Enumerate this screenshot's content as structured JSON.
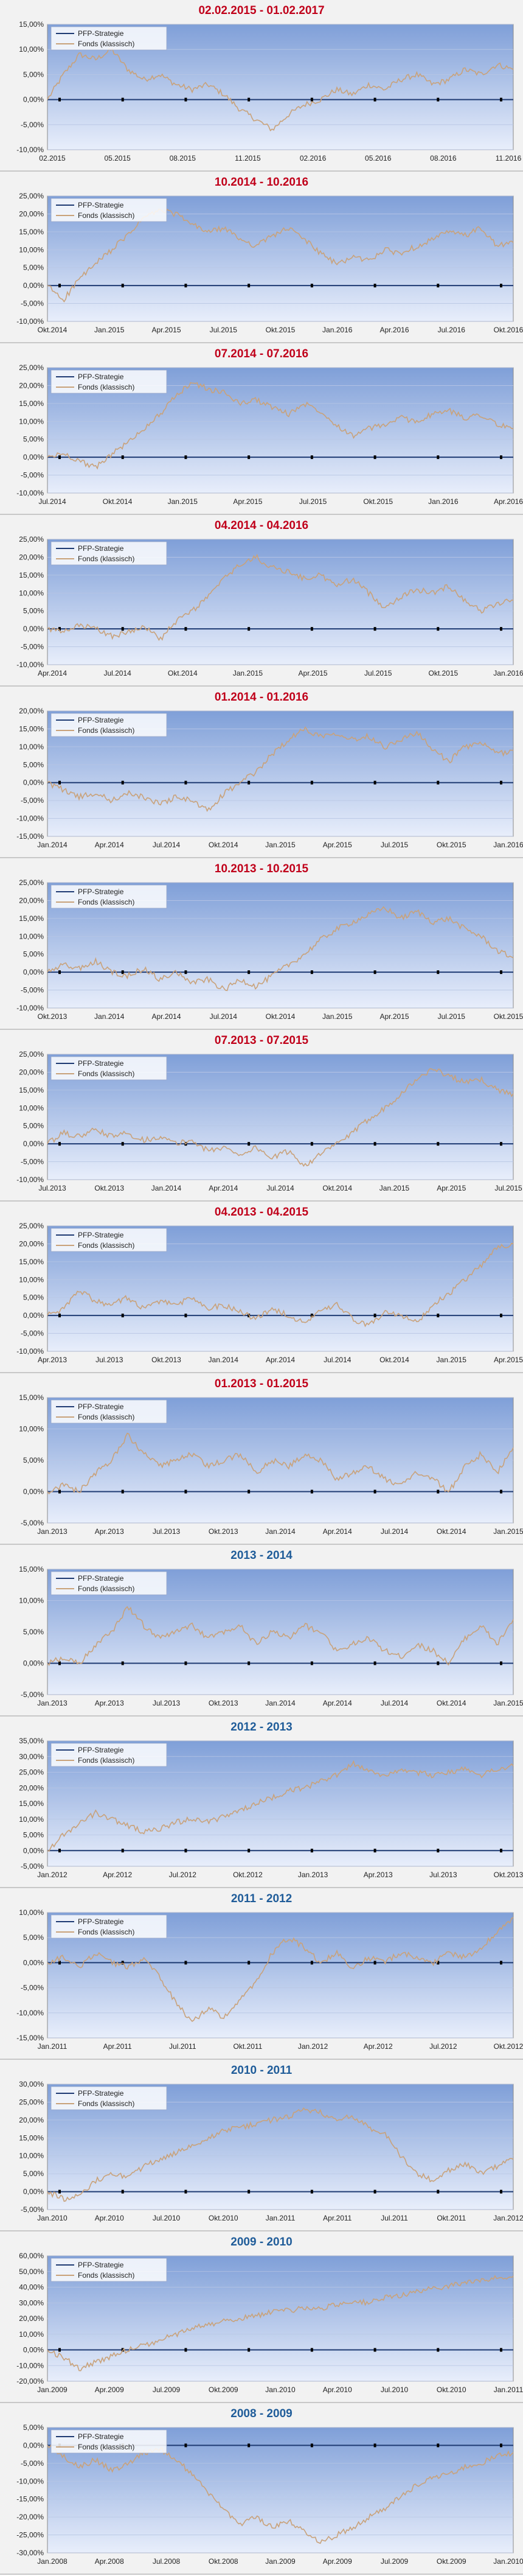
{
  "colors": {
    "plot_top": "#7f9fd8",
    "plot_bottom": "#e8eefb",
    "fonds_line": "#c9a27a",
    "pfp_line": "#1f3b73",
    "title_red": "#c0001a",
    "title_blue": "#1f5c99"
  },
  "chart_data": [
    {
      "type": "line",
      "title": "02.02.2015 - 01.02.2017",
      "title_color": "red",
      "legend": [
        "PFP-Strategie",
        "Fonds (klassisch)"
      ],
      "legend_position": "top-left",
      "grid": true,
      "yticks": [
        15,
        10,
        5,
        0,
        -5,
        -10
      ],
      "ylim": [
        -10,
        15
      ],
      "xticks": [
        "02.2015",
        "05.2015",
        "08.2015",
        "11.2015",
        "02.2016",
        "05.2016",
        "08.2016",
        "11.2016"
      ],
      "series": [
        {
          "name": "PFP-Strategie",
          "values": [
            0,
            0
          ]
        },
        {
          "name": "Fonds (klassisch)",
          "values": [
            0,
            5,
            9,
            8,
            10,
            6,
            4,
            5,
            3,
            2,
            3,
            1,
            -2,
            -4,
            -6,
            -3,
            -1,
            0,
            2,
            1,
            3,
            2,
            4,
            5,
            3,
            4,
            6,
            5,
            7,
            6
          ]
        }
      ]
    },
    {
      "type": "line",
      "title": "10.2014 - 10.2016",
      "title_color": "red",
      "legend": [
        "PFP-Strategie",
        "Fonds (klassisch)"
      ],
      "legend_position": "top-left",
      "grid": true,
      "yticks": [
        25,
        20,
        15,
        10,
        5,
        0,
        -5,
        -10
      ],
      "ylim": [
        -10,
        25
      ],
      "xticks": [
        "Okt.2014",
        "Jan.2015",
        "Apr.2015",
        "Jul.2015",
        "Okt.2015",
        "Jan.2016",
        "Apr.2016",
        "Jul.2016",
        "Okt.2016"
      ],
      "series": [
        {
          "name": "PFP-Strategie",
          "values": [
            0,
            0
          ]
        },
        {
          "name": "Fonds (klassisch)",
          "values": [
            0,
            -4,
            2,
            6,
            10,
            14,
            19,
            21,
            20,
            17,
            15,
            16,
            13,
            11,
            14,
            16,
            13,
            9,
            6,
            8,
            7,
            10,
            9,
            11,
            13,
            15,
            14,
            16,
            11,
            12
          ]
        }
      ]
    },
    {
      "type": "line",
      "title": "07.2014 - 07.2016",
      "title_color": "red",
      "legend": [
        "PFP-Strategie",
        "Fonds (klassisch)"
      ],
      "legend_position": "top-left",
      "grid": true,
      "yticks": [
        25,
        20,
        15,
        10,
        5,
        0,
        -5,
        -10
      ],
      "ylim": [
        -10,
        25
      ],
      "xticks": [
        "Jul.2014",
        "Okt.2014",
        "Jan.2015",
        "Apr.2015",
        "Jul.2015",
        "Okt.2015",
        "Jan.2016",
        "Apr.2016"
      ],
      "series": [
        {
          "name": "PFP-Strategie",
          "values": [
            0,
            0
          ]
        },
        {
          "name": "Fonds (klassisch)",
          "values": [
            0,
            1,
            -1,
            -3,
            1,
            4,
            8,
            12,
            17,
            21,
            19,
            18,
            15,
            16,
            14,
            12,
            15,
            13,
            9,
            6,
            8,
            9,
            11,
            10,
            12,
            13,
            11,
            12,
            9,
            8
          ]
        }
      ]
    },
    {
      "type": "line",
      "title": "04.2014 - 04.2016",
      "title_color": "red",
      "legend": [
        "PFP-Strategie",
        "Fonds (klassisch)"
      ],
      "legend_position": "top-left",
      "grid": true,
      "yticks": [
        25,
        20,
        15,
        10,
        5,
        0,
        -5,
        -10
      ],
      "ylim": [
        -10,
        25
      ],
      "xticks": [
        "Apr.2014",
        "Jul.2014",
        "Okt.2014",
        "Jan.2015",
        "Apr.2015",
        "Jul.2015",
        "Okt.2015",
        "Jan.2016"
      ],
      "series": [
        {
          "name": "PFP-Strategie",
          "values": [
            0,
            0
          ]
        },
        {
          "name": "Fonds (klassisch)",
          "values": [
            0,
            -1,
            1,
            0,
            -2,
            -1,
            1,
            -3,
            2,
            5,
            9,
            14,
            18,
            20,
            17,
            16,
            14,
            15,
            12,
            14,
            10,
            6,
            9,
            11,
            10,
            12,
            8,
            5,
            7,
            8
          ]
        }
      ]
    },
    {
      "type": "line",
      "title": "01.2014 - 01.2016",
      "title_color": "red",
      "legend": [
        "PFP-Strategie",
        "Fonds (klassisch)"
      ],
      "legend_position": "top-left",
      "grid": true,
      "yticks": [
        20,
        15,
        10,
        5,
        0,
        -5,
        -10,
        -15
      ],
      "ylim": [
        -15,
        20
      ],
      "xticks": [
        "Jan.2014",
        "Apr.2014",
        "Jul.2014",
        "Okt.2014",
        "Jan.2015",
        "Apr.2015",
        "Jul.2015",
        "Okt.2015",
        "Jan.2016"
      ],
      "series": [
        {
          "name": "PFP-Strategie",
          "values": [
            0,
            0
          ]
        },
        {
          "name": "Fonds (klassisch)",
          "values": [
            0,
            -2,
            -4,
            -3,
            -5,
            -3,
            -4,
            -6,
            -4,
            -5,
            -8,
            -3,
            0,
            3,
            8,
            12,
            15,
            13,
            14,
            12,
            13,
            10,
            12,
            14,
            9,
            6,
            10,
            11,
            8,
            9
          ]
        }
      ]
    },
    {
      "type": "line",
      "title": "10.2013 - 10.2015",
      "title_color": "red",
      "legend": [
        "PFP-Strategie",
        "Fonds (klassisch)"
      ],
      "legend_position": "top-left",
      "grid": true,
      "yticks": [
        25,
        20,
        15,
        10,
        5,
        0,
        -5,
        -10
      ],
      "ylim": [
        -10,
        25
      ],
      "xticks": [
        "Okt.2013",
        "Jan.2014",
        "Apr.2014",
        "Jul.2014",
        "Okt.2014",
        "Jan.2015",
        "Apr.2015",
        "Jul.2015",
        "Okt.2015"
      ],
      "series": [
        {
          "name": "PFP-Strategie",
          "values": [
            0,
            0
          ]
        },
        {
          "name": "Fonds (klassisch)",
          "values": [
            0,
            2,
            1,
            3,
            0,
            -1,
            1,
            -2,
            0,
            -3,
            -2,
            -5,
            -2,
            -4,
            -1,
            2,
            5,
            9,
            12,
            14,
            16,
            18,
            15,
            17,
            14,
            15,
            12,
            10,
            6,
            4
          ]
        }
      ]
    },
    {
      "type": "line",
      "title": "07.2013 - 07.2015",
      "title_color": "red",
      "legend": [
        "PFP-Strategie",
        "Fonds (klassisch)"
      ],
      "legend_position": "top-left",
      "grid": true,
      "yticks": [
        25,
        20,
        15,
        10,
        5,
        0,
        -5,
        -10
      ],
      "ylim": [
        -10,
        25
      ],
      "xticks": [
        "Jul.2013",
        "Okt.2013",
        "Jan.2014",
        "Apr.2014",
        "Jul.2014",
        "Okt.2014",
        "Jan.2015",
        "Apr.2015",
        "Jul.2015"
      ],
      "series": [
        {
          "name": "PFP-Strategie",
          "values": [
            0,
            0
          ]
        },
        {
          "name": "Fonds (klassisch)",
          "values": [
            0,
            3,
            2,
            4,
            2,
            3,
            1,
            2,
            0,
            1,
            -2,
            -1,
            -3,
            -1,
            -4,
            -2,
            -6,
            -3,
            0,
            3,
            7,
            10,
            14,
            18,
            21,
            19,
            17,
            18,
            15,
            14
          ]
        }
      ]
    },
    {
      "type": "line",
      "title": "04.2013 - 04.2015",
      "title_color": "red",
      "legend": [
        "PFP-Strategie",
        "Fonds (klassisch)"
      ],
      "legend_position": "top-left",
      "grid": true,
      "yticks": [
        25,
        20,
        15,
        10,
        5,
        0,
        -5,
        -10
      ],
      "ylim": [
        -10,
        25
      ],
      "xticks": [
        "Apr.2013",
        "Jul.2013",
        "Okt.2013",
        "Jan.2014",
        "Apr.2014",
        "Jul.2014",
        "Okt.2014",
        "Jan.2015",
        "Apr.2015"
      ],
      "series": [
        {
          "name": "PFP-Strategie",
          "values": [
            0,
            0
          ]
        },
        {
          "name": "Fonds (klassisch)",
          "values": [
            0,
            2,
            7,
            4,
            3,
            5,
            2,
            4,
            3,
            5,
            2,
            3,
            1,
            -1,
            2,
            0,
            -2,
            1,
            3,
            -1,
            -3,
            1,
            0,
            -2,
            3,
            6,
            10,
            14,
            19,
            20
          ]
        }
      ]
    },
    {
      "type": "line",
      "title": "01.2013 - 01.2015",
      "title_color": "red",
      "legend": [
        "PFP-Strategie",
        "Fonds (klassisch)"
      ],
      "legend_position": "top-left",
      "grid": true,
      "yticks": [
        15,
        10,
        5,
        0,
        -5
      ],
      "ylim": [
        -5,
        15
      ],
      "xticks": [
        "Jan.2013",
        "Apr.2013",
        "Jul.2013",
        "Okt.2013",
        "Jan.2014",
        "Apr.2014",
        "Jul.2014",
        "Okt.2014",
        "Jan.2015"
      ],
      "series": [
        {
          "name": "PFP-Strategie",
          "values": [
            0,
            0
          ]
        },
        {
          "name": "Fonds (klassisch)",
          "values": [
            0,
            1,
            0,
            3,
            5,
            9,
            6,
            4,
            5,
            6,
            4,
            5,
            6,
            3,
            5,
            4,
            6,
            5,
            2,
            3,
            4,
            2,
            1,
            3,
            2,
            0,
            4,
            6,
            3,
            7
          ]
        }
      ]
    },
    {
      "type": "line",
      "title": "2013 - 2014",
      "title_color": "blue",
      "legend": [
        "PFP-Strategie",
        "Fonds (klassisch)"
      ],
      "legend_position": "top-left",
      "grid": true,
      "yticks": [
        15,
        10,
        5,
        0,
        -5
      ],
      "ylim": [
        -5,
        15
      ],
      "xticks": [
        "Jan.2013",
        "Apr.2013",
        "Jul.2013",
        "Okt.2013",
        "Jan.2014",
        "Apr.2014",
        "Jul.2014",
        "Okt.2014",
        "Jan.2015"
      ],
      "series": [
        {
          "name": "PFP-Strategie",
          "values": [
            0,
            0
          ]
        },
        {
          "name": "Fonds (klassisch)",
          "values": [
            0,
            1,
            0,
            3,
            5,
            9,
            6,
            4,
            5,
            6,
            4,
            5,
            6,
            3,
            5,
            4,
            6,
            5,
            2,
            3,
            4,
            2,
            1,
            3,
            2,
            0,
            4,
            6,
            3,
            7
          ]
        }
      ]
    },
    {
      "type": "line",
      "title": "2012 - 2013",
      "title_color": "blue",
      "legend": [
        "PFP-Strategie",
        "Fonds (klassisch)"
      ],
      "legend_position": "top-left",
      "grid": true,
      "yticks": [
        35,
        30,
        25,
        20,
        15,
        10,
        5,
        0,
        -5
      ],
      "ylim": [
        -5,
        35
      ],
      "xticks": [
        "Jan.2012",
        "Apr.2012",
        "Jul.2012",
        "Okt.2012",
        "Jan.2013",
        "Apr.2013",
        "Jul.2013",
        "Okt.2013"
      ],
      "series": [
        {
          "name": "PFP-Strategie",
          "values": [
            0,
            0
          ]
        },
        {
          "name": "Fonds (klassisch)",
          "values": [
            0,
            5,
            9,
            12,
            10,
            8,
            6,
            7,
            9,
            10,
            9,
            11,
            13,
            15,
            17,
            19,
            20,
            22,
            24,
            28,
            25,
            24,
            26,
            25,
            24,
            25,
            26,
            24,
            26,
            27
          ]
        }
      ]
    },
    {
      "type": "line",
      "title": "2011 - 2012",
      "title_color": "blue",
      "legend": [
        "PFP-Strategie",
        "Fonds (klassisch)"
      ],
      "legend_position": "top-left",
      "grid": true,
      "yticks": [
        10,
        5,
        0,
        -5,
        -10,
        -15
      ],
      "ylim": [
        -15,
        10
      ],
      "xticks": [
        "Jan.2011",
        "Apr.2011",
        "Jul.2011",
        "Okt.2011",
        "Jan.2012",
        "Apr.2012",
        "Jul.2012",
        "Okt.2012"
      ],
      "series": [
        {
          "name": "PFP-Strategie",
          "values": [
            0,
            0
          ]
        },
        {
          "name": "Fonds (klassisch)",
          "values": [
            0,
            1,
            -1,
            2,
            0,
            -1,
            1,
            -3,
            -8,
            -12,
            -9,
            -11,
            -7,
            -4,
            2,
            5,
            3,
            0,
            2,
            -1,
            1,
            0,
            2,
            1,
            0,
            2,
            1,
            3,
            6,
            9
          ]
        }
      ]
    },
    {
      "type": "line",
      "title": "2010 - 2011",
      "title_color": "blue",
      "legend": [
        "PFP-Strategie",
        "Fonds (klassisch)"
      ],
      "legend_position": "top-left",
      "grid": true,
      "yticks": [
        30,
        25,
        20,
        15,
        10,
        5,
        0,
        -5
      ],
      "ylim": [
        -5,
        30
      ],
      "xticks": [
        "Jan.2010",
        "Apr.2010",
        "Jul.2010",
        "Okt.2010",
        "Jan.2011",
        "Apr.2011",
        "Jul.2011",
        "Okt.2011",
        "Jan.2012"
      ],
      "series": [
        {
          "name": "PFP-Strategie",
          "values": [
            0,
            0
          ]
        },
        {
          "name": "Fonds (klassisch)",
          "values": [
            0,
            -2,
            -1,
            3,
            5,
            4,
            7,
            9,
            11,
            13,
            15,
            17,
            18,
            19,
            20,
            21,
            23,
            22,
            20,
            21,
            18,
            16,
            10,
            5,
            3,
            6,
            8,
            5,
            7,
            9
          ]
        }
      ]
    },
    {
      "type": "line",
      "title": "2009 - 2010",
      "title_color": "blue",
      "legend": [
        "PFP-Strategie",
        "Fonds (klassisch)"
      ],
      "legend_position": "top-left",
      "grid": true,
      "yticks": [
        60,
        50,
        40,
        30,
        20,
        10,
        0,
        -10,
        -20
      ],
      "ylim": [
        -20,
        60
      ],
      "xticks": [
        "Jan.2009",
        "Apr.2009",
        "Jul.2009",
        "Okt.2009",
        "Jan.2010",
        "Apr.2010",
        "Jul.2010",
        "Okt.2010",
        "Jan.2011"
      ],
      "series": [
        {
          "name": "PFP-Strategie",
          "values": [
            0,
            0
          ]
        },
        {
          "name": "Fonds (klassisch)",
          "values": [
            0,
            -5,
            -12,
            -8,
            -4,
            0,
            3,
            6,
            10,
            14,
            16,
            18,
            20,
            22,
            24,
            25,
            27,
            26,
            29,
            31,
            30,
            33,
            35,
            37,
            39,
            41,
            43,
            44,
            46,
            47
          ]
        }
      ]
    },
    {
      "type": "line",
      "title": "2008 - 2009",
      "title_color": "blue",
      "legend": [
        "PFP-Strategie",
        "Fonds (klassisch)"
      ],
      "legend_position": "top-left",
      "grid": true,
      "yticks": [
        5,
        0,
        -5,
        -10,
        -15,
        -20,
        -25,
        -30
      ],
      "ylim": [
        -30,
        5
      ],
      "xticks": [
        "Jan.2008",
        "Apr.2008",
        "Jul.2008",
        "Okt.2008",
        "Jan.2009",
        "Apr.2009",
        "Jul.2009",
        "Okt.2009",
        "Jan.2010"
      ],
      "series": [
        {
          "name": "PFP-Strategie",
          "values": [
            0,
            0
          ]
        },
        {
          "name": "Fonds (klassisch)",
          "values": [
            0,
            -3,
            -6,
            -4,
            -7,
            -5,
            -2,
            -1,
            -4,
            -8,
            -13,
            -18,
            -22,
            -20,
            -23,
            -21,
            -24,
            -27,
            -25,
            -23,
            -20,
            -18,
            -14,
            -11,
            -9,
            -8,
            -6,
            -5,
            -3,
            -2
          ]
        }
      ]
    }
  ]
}
